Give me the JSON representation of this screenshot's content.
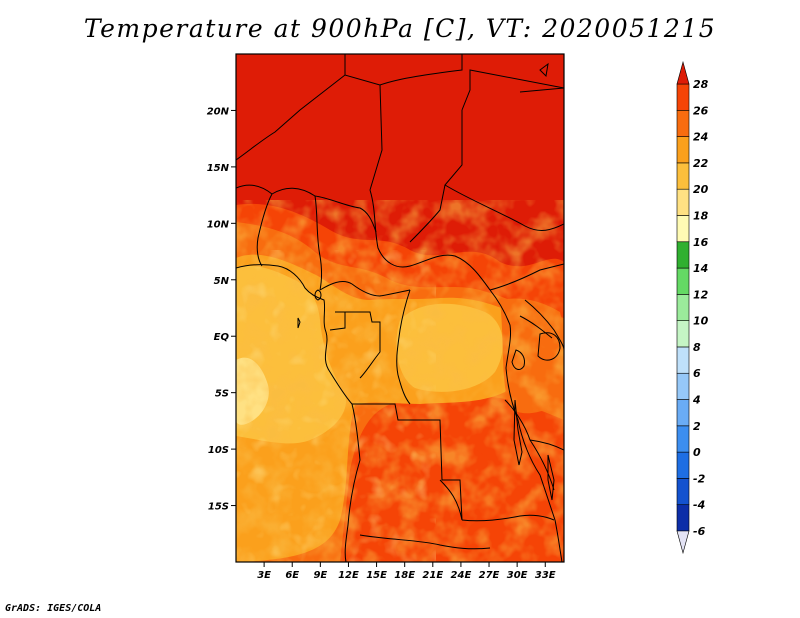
{
  "title": "Temperature at 900hPa [C], VT: 2020051215",
  "credit": "GrADS: IGES/COLA",
  "map": {
    "projection": "latlon",
    "lon_range": [
      0,
      35
    ],
    "lat_range": [
      -20,
      25
    ],
    "lat_ticks": [
      {
        "lat": 20,
        "label": "20N"
      },
      {
        "lat": 15,
        "label": "15N"
      },
      {
        "lat": 10,
        "label": "10N"
      },
      {
        "lat": 5,
        "label": "5N"
      },
      {
        "lat": 0,
        "label": "EQ"
      },
      {
        "lat": -5,
        "label": "5S"
      },
      {
        "lat": -10,
        "label": "10S"
      },
      {
        "lat": -15,
        "label": "15S"
      }
    ],
    "lon_ticks": [
      {
        "lon": 3,
        "label": "3E"
      },
      {
        "lon": 6,
        "label": "6E"
      },
      {
        "lon": 9,
        "label": "9E"
      },
      {
        "lon": 12,
        "label": "12E"
      },
      {
        "lon": 15,
        "label": "15E"
      },
      {
        "lon": 18,
        "label": "18E"
      },
      {
        "lon": 21,
        "label": "21E"
      },
      {
        "lon": 24,
        "label": "24E"
      },
      {
        "lon": 27,
        "label": "27E"
      },
      {
        "lon": 30,
        "label": "30E"
      },
      {
        "lon": 33,
        "label": "33E"
      }
    ]
  },
  "colorbar": {
    "levels": [
      "-6",
      "-4",
      "-2",
      "0",
      "2",
      "4",
      "6",
      "8",
      "10",
      "12",
      "14",
      "16",
      "18",
      "20",
      "22",
      "24",
      "26",
      "28"
    ],
    "colors": [
      "#0a0a78",
      "#0c2ea8",
      "#1352cf",
      "#1e6ee3",
      "#3c8ef0",
      "#6aacf5",
      "#96c8f8",
      "#bfe0fa",
      "#c5f5c5",
      "#9beb9b",
      "#64d964",
      "#30b030",
      "#fffbb4",
      "#ffe183",
      "#fcbf3c",
      "#fba01c",
      "#f86c0f",
      "#f54406",
      "#de1c06"
    ],
    "below_color": "#e3e3f5"
  }
}
